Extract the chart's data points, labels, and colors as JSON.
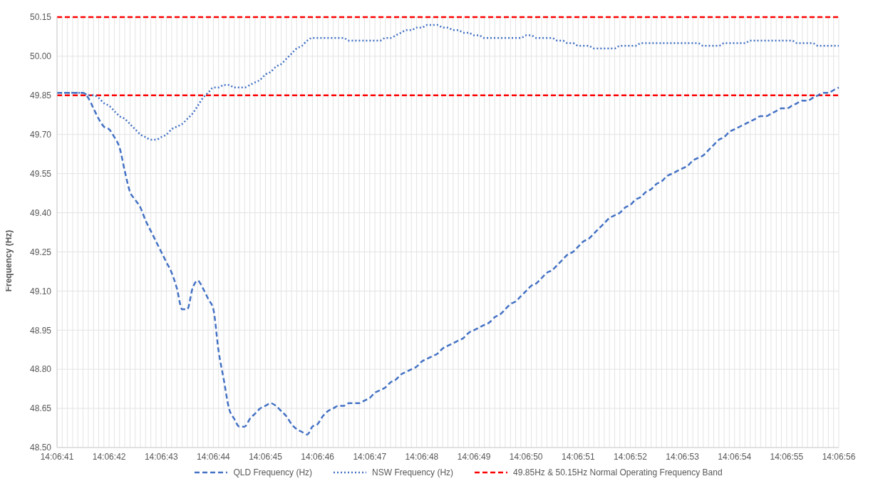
{
  "chart_data": {
    "type": "line",
    "ylabel": "Frequency (Hz)",
    "categories": [
      "14:06:41",
      null,
      null,
      null,
      null,
      null,
      null,
      null,
      null,
      null,
      "14:06:42",
      null,
      null,
      null,
      null,
      null,
      null,
      null,
      null,
      null,
      "14:06:43",
      null,
      null,
      null,
      null,
      null,
      null,
      null,
      null,
      null,
      "14:06:44",
      null,
      null,
      null,
      null,
      null,
      null,
      null,
      null,
      null,
      "14:06:45",
      null,
      null,
      null,
      null,
      null,
      null,
      null,
      null,
      null,
      "14:06:46",
      null,
      null,
      null,
      null,
      null,
      null,
      null,
      null,
      null,
      "14:06:47",
      null,
      null,
      null,
      null,
      null,
      null,
      null,
      null,
      null,
      "14:06:48",
      null,
      null,
      null,
      null,
      null,
      null,
      null,
      null,
      null,
      "14:06:49",
      null,
      null,
      null,
      null,
      null,
      null,
      null,
      null,
      null,
      "14:06:50",
      null,
      null,
      null,
      null,
      null,
      null,
      null,
      null,
      null,
      "14:06:51",
      null,
      null,
      null,
      null,
      null,
      null,
      null,
      null,
      null,
      "14:06:52",
      null,
      null,
      null,
      null,
      null,
      null,
      null,
      null,
      null,
      "14:06:53",
      null,
      null,
      null,
      null,
      null,
      null,
      null,
      null,
      null,
      "14:06:54",
      null,
      null,
      null,
      null,
      null,
      null,
      null,
      null,
      null,
      "14:06:55",
      null,
      null,
      null,
      null,
      null,
      null,
      null,
      null,
      null,
      "14:06:56"
    ],
    "series": [
      {
        "name": "QLD Frequency (Hz)",
        "color": "#4472c4",
        "line_style": "dashed",
        "values": [
          49.86,
          49.86,
          49.86,
          49.86,
          49.86,
          49.86,
          49.84,
          49.8,
          49.76,
          49.73,
          49.72,
          49.69,
          49.65,
          49.56,
          49.48,
          49.45,
          49.42,
          49.37,
          49.33,
          49.29,
          49.25,
          49.21,
          49.17,
          49.11,
          49.03,
          49.03,
          49.11,
          49.14,
          49.11,
          49.07,
          49.03,
          48.87,
          48.76,
          48.65,
          48.61,
          48.58,
          48.58,
          48.61,
          48.63,
          48.65,
          48.66,
          48.67,
          48.66,
          48.64,
          48.62,
          48.59,
          48.57,
          48.56,
          48.55,
          48.58,
          48.59,
          48.62,
          48.64,
          48.65,
          48.66,
          48.66,
          48.67,
          48.67,
          48.67,
          48.68,
          48.69,
          48.71,
          48.72,
          48.73,
          48.75,
          48.76,
          48.78,
          48.79,
          48.8,
          48.81,
          48.83,
          48.84,
          48.85,
          48.86,
          48.88,
          48.89,
          48.9,
          48.91,
          48.92,
          48.94,
          48.95,
          48.96,
          48.97,
          48.98,
          49.0,
          49.01,
          49.03,
          49.05,
          49.06,
          49.08,
          49.1,
          49.12,
          49.13,
          49.15,
          49.17,
          49.18,
          49.2,
          49.22,
          49.24,
          49.25,
          49.27,
          49.29,
          49.3,
          49.32,
          49.34,
          49.36,
          49.38,
          49.39,
          49.4,
          49.42,
          49.43,
          49.45,
          49.46,
          49.48,
          49.49,
          49.51,
          49.52,
          49.54,
          49.55,
          49.56,
          49.57,
          49.58,
          49.6,
          49.61,
          49.62,
          49.64,
          49.66,
          49.68,
          49.69,
          49.71,
          49.72,
          49.73,
          49.74,
          49.75,
          49.76,
          49.77,
          49.77,
          49.78,
          49.79,
          49.8,
          49.8,
          49.81,
          49.82,
          49.83,
          49.83,
          49.84,
          49.85,
          49.86,
          49.86,
          49.87,
          49.88
        ]
      },
      {
        "name": "NSW Frequency (Hz)",
        "color": "#4472c4",
        "line_style": "dotted",
        "values": [
          49.86,
          49.86,
          49.86,
          49.86,
          49.86,
          49.86,
          49.85,
          49.85,
          49.84,
          49.82,
          49.81,
          49.79,
          49.77,
          49.76,
          49.74,
          49.72,
          49.7,
          49.69,
          49.68,
          49.68,
          49.69,
          49.7,
          49.72,
          49.73,
          49.74,
          49.76,
          49.78,
          49.81,
          49.84,
          49.86,
          49.88,
          49.88,
          49.89,
          49.89,
          49.88,
          49.88,
          49.88,
          49.89,
          49.9,
          49.91,
          49.93,
          49.94,
          49.96,
          49.97,
          49.99,
          50.01,
          50.03,
          50.04,
          50.06,
          50.07,
          50.07,
          50.07,
          50.07,
          50.07,
          50.07,
          50.07,
          50.06,
          50.06,
          50.06,
          50.06,
          50.06,
          50.06,
          50.06,
          50.07,
          50.07,
          50.08,
          50.09,
          50.1,
          50.1,
          50.11,
          50.11,
          50.12,
          50.12,
          50.12,
          50.11,
          50.11,
          50.1,
          50.1,
          50.09,
          50.09,
          50.08,
          50.08,
          50.07,
          50.07,
          50.07,
          50.07,
          50.07,
          50.07,
          50.07,
          50.07,
          50.08,
          50.08,
          50.07,
          50.07,
          50.07,
          50.07,
          50.06,
          50.06,
          50.05,
          50.05,
          50.04,
          50.04,
          50.04,
          50.03,
          50.03,
          50.03,
          50.03,
          50.03,
          50.04,
          50.04,
          50.04,
          50.04,
          50.05,
          50.05,
          50.05,
          50.05,
          50.05,
          50.05,
          50.05,
          50.05,
          50.05,
          50.05,
          50.05,
          50.05,
          50.04,
          50.04,
          50.04,
          50.04,
          50.05,
          50.05,
          50.05,
          50.05,
          50.05,
          50.06,
          50.06,
          50.06,
          50.06,
          50.06,
          50.06,
          50.06,
          50.06,
          50.06,
          50.05,
          50.05,
          50.05,
          50.05,
          50.04,
          50.04,
          50.04,
          50.04,
          50.04
        ]
      }
    ],
    "ref_lines": [
      {
        "axis": "y",
        "value": 49.85,
        "label": "49.85Hz & 50.15Hz Normal Operating Frequency Band",
        "color": "#ff0000",
        "line_style": "dashed"
      },
      {
        "axis": "y",
        "value": 50.15,
        "color": "#ff0000",
        "line_style": "dashed"
      }
    ],
    "ylim": [
      48.5,
      50.15
    ],
    "yticks": [
      {
        "value": 48.5,
        "label": "48.50"
      },
      48.65,
      {
        "value": 48.8,
        "label": "48.80"
      },
      48.95,
      {
        "value": 49.1,
        "label": "49.10"
      },
      49.25,
      {
        "value": 49.4,
        "label": "49.40"
      },
      49.55,
      {
        "value": 49.7,
        "label": "49.70"
      },
      49.85,
      {
        "value": 50,
        "label": "50.00"
      },
      50.15
    ],
    "grid": true,
    "legend": "bottom",
    "marker": "none"
  }
}
